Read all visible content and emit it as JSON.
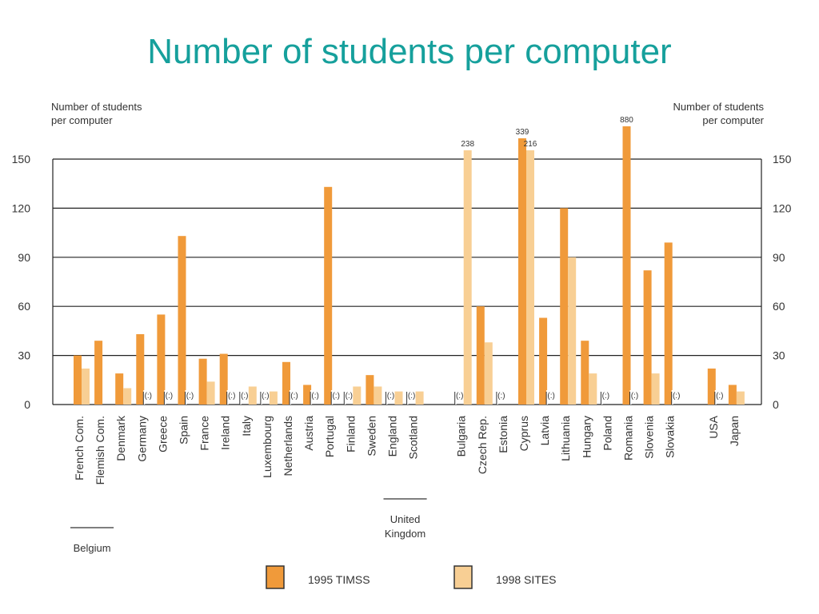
{
  "title": "Number of students per computer",
  "colors": {
    "title": "#16a09c",
    "timss": "#f09a3a",
    "sites": "#f8cf94",
    "axis": "#222222"
  },
  "chart_data": {
    "type": "bar",
    "ylabel_left": [
      "Number of students",
      "per computer"
    ],
    "ylabel_right": [
      "Number of students",
      "per computer"
    ],
    "ylim": [
      0,
      150
    ],
    "yticks": [
      "0",
      "30",
      "60",
      "90",
      "120",
      "150"
    ],
    "grid": true,
    "not_available_label": "(:)",
    "series": [
      {
        "name": "1995 TIMSS",
        "key": "timss"
      },
      {
        "name": "1998 SITES",
        "key": "sites"
      }
    ],
    "categories": [
      {
        "name": "French Com.",
        "timss": 30,
        "sites": 22
      },
      {
        "name": "Flemish Com.",
        "timss": 39,
        "sites": null
      },
      {
        "name": "Denmark",
        "timss": 19,
        "sites": 10
      },
      {
        "name": "Germany",
        "timss": 43,
        "sites": "na"
      },
      {
        "name": "Greece",
        "timss": 55,
        "sites": "na"
      },
      {
        "name": "Spain",
        "timss": 103,
        "sites": "na"
      },
      {
        "name": "France",
        "timss": 28,
        "sites": 14
      },
      {
        "name": "Ireland",
        "timss": 31,
        "sites": "na"
      },
      {
        "name": "Italy",
        "timss": "na",
        "sites": 11
      },
      {
        "name": "Luxembourg",
        "timss": "na",
        "sites": 8
      },
      {
        "name": "Netherlands",
        "timss": 26,
        "sites": "na"
      },
      {
        "name": "Austria",
        "timss": 12,
        "sites": "na"
      },
      {
        "name": "Portugal",
        "timss": 133,
        "sites": "na"
      },
      {
        "name": "Finland",
        "timss": "na",
        "sites": 11
      },
      {
        "name": "Sweden",
        "timss": 18,
        "sites": 11
      },
      {
        "name": "England",
        "timss": "na",
        "sites": 8
      },
      {
        "name": "Scotland",
        "timss": "na",
        "sites": 8
      },
      {
        "name": "Bulgaria",
        "timss": "na",
        "sites": 238
      },
      {
        "name": "Czech Rep.",
        "timss": 60,
        "sites": 38
      },
      {
        "name": "Estonia",
        "timss": "na",
        "sites": null
      },
      {
        "name": "Cyprus",
        "timss": 339,
        "sites": 216
      },
      {
        "name": "Latvia",
        "timss": 53,
        "sites": "na"
      },
      {
        "name": "Lithuania",
        "timss": 120,
        "sites": 90
      },
      {
        "name": "Hungary",
        "timss": 39,
        "sites": 19
      },
      {
        "name": "Poland",
        "timss": "na",
        "sites": null
      },
      {
        "name": "Romania",
        "timss": 880,
        "sites": "na"
      },
      {
        "name": "Slovenia",
        "timss": 82,
        "sites": 19
      },
      {
        "name": "Slovakia",
        "timss": 99,
        "sites": "na"
      },
      {
        "name": "USA",
        "timss": 22,
        "sites": "na"
      },
      {
        "name": "Japan",
        "timss": 12,
        "sites": 8
      }
    ],
    "value_labels": [
      {
        "category": "Bulgaria",
        "series": "sites",
        "text": "238"
      },
      {
        "category": "Cyprus",
        "series": "timss",
        "text": "339"
      },
      {
        "category": "Cyprus",
        "series": "sites",
        "text": "216"
      },
      {
        "category": "Romania",
        "series": "timss",
        "text": "880"
      }
    ],
    "group_labels": [
      {
        "lines": [
          "Belgium"
        ],
        "from": "French Com.",
        "to": "Flemish Com."
      },
      {
        "lines": [
          "United",
          "Kingdom"
        ],
        "from": "England",
        "to": "Scotland"
      }
    ]
  }
}
